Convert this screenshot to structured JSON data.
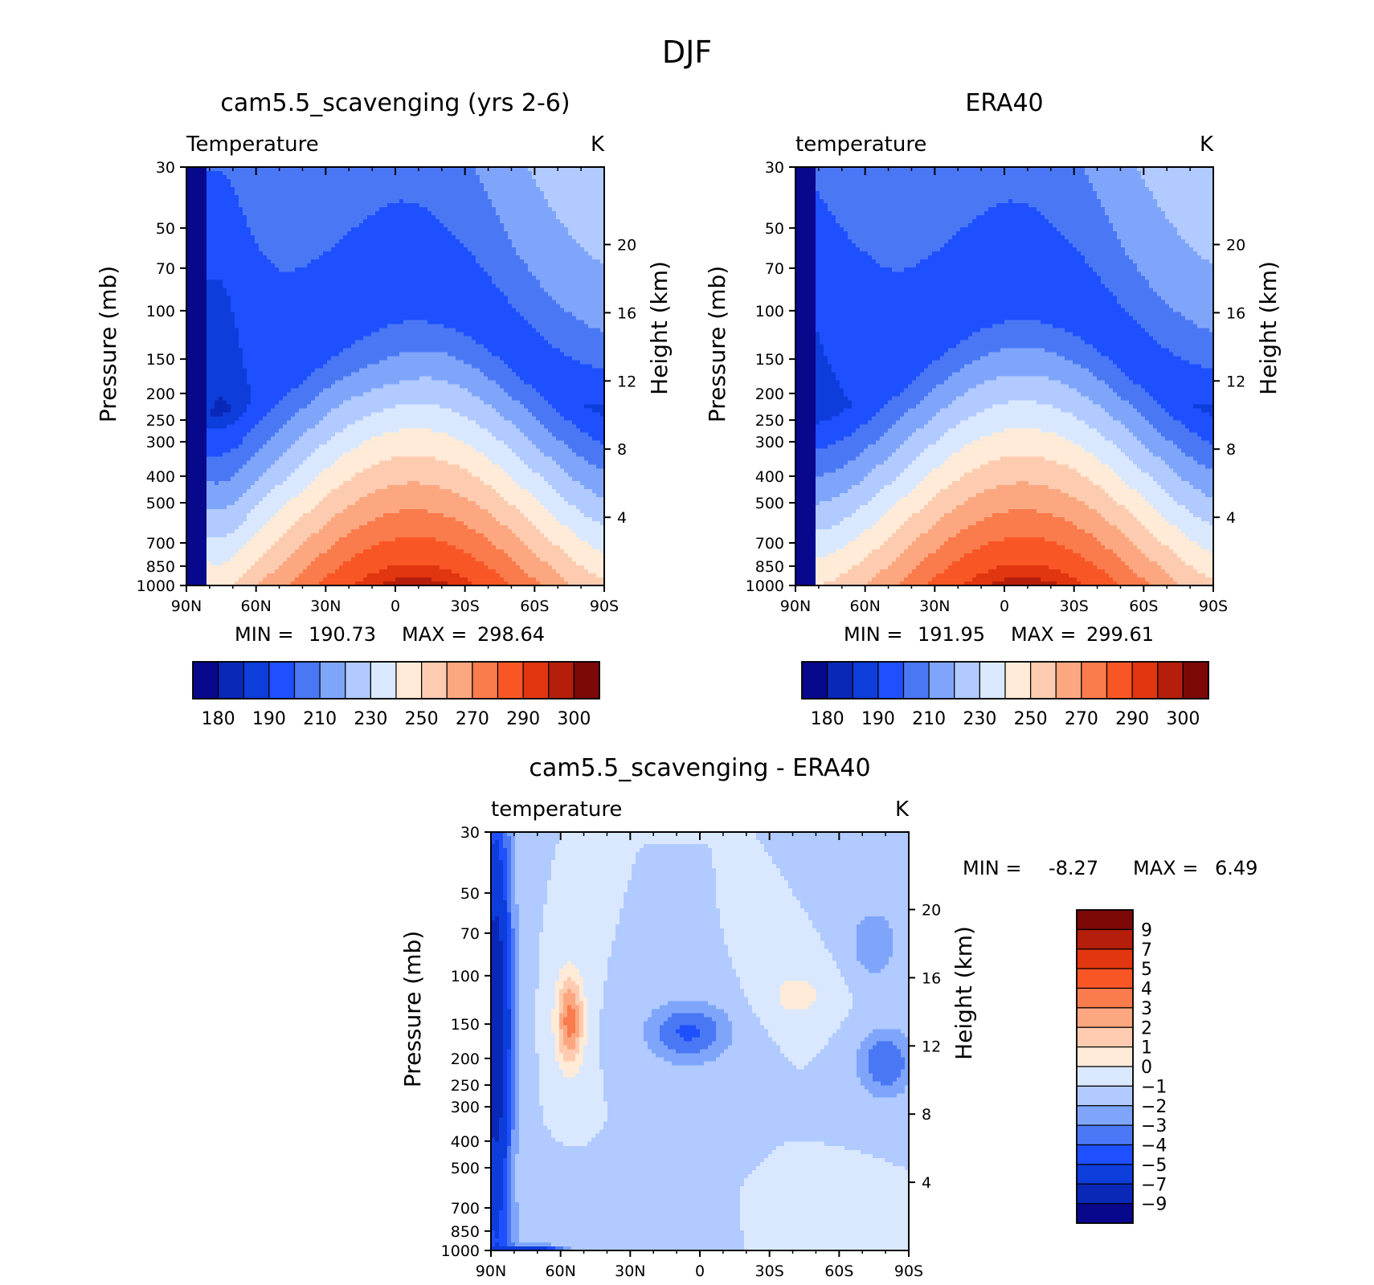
{
  "figure": {
    "title": "DJF"
  },
  "palettes": {
    "temperature": [
      "#08088c",
      "#0a28b8",
      "#0d3ddb",
      "#1e50ff",
      "#4a78f5",
      "#7fa5fb",
      "#b1caff",
      "#dae8ff",
      "#ffebd7",
      "#fdcbb0",
      "#fca77f",
      "#fa7b4c",
      "#f95626",
      "#e1360f",
      "#b41e0a",
      "#7d0808"
    ],
    "difference": [
      "#08088c",
      "#0a28b8",
      "#0d3ddb",
      "#1e50ff",
      "#4a78f5",
      "#7fa5fb",
      "#b1caff",
      "#dae8ff",
      "#ffebd7",
      "#fdcbb0",
      "#fca77f",
      "#fa7b4c",
      "#f95626",
      "#e1360f",
      "#b41e0a",
      "#7d0808"
    ]
  },
  "chart_data": [
    {
      "type": "heatmap",
      "panel": "model",
      "title": "cam5.5_scavenging (yrs 2-6)",
      "left_label": "Temperature",
      "units": "K",
      "ylabel": "Pressure (mb)",
      "y2label": "Height (km)",
      "xticks": [
        "90N",
        "60N",
        "30N",
        "0",
        "30S",
        "60S",
        "90S"
      ],
      "yticks": [
        30,
        50,
        70,
        100,
        150,
        200,
        250,
        300,
        400,
        500,
        700,
        850,
        1000
      ],
      "y2ticks": [
        4,
        8,
        12,
        16,
        20
      ],
      "ylim": [
        30,
        1000
      ],
      "yscale": "log",
      "min_label": "MIN =",
      "max_label": "MAX =",
      "min_value": "190.73",
      "max_value": "298.64",
      "legend_labels": [
        "180",
        "190",
        "210",
        "230",
        "250",
        "270",
        "290",
        "300"
      ],
      "levels": [
        180,
        185,
        190,
        200,
        210,
        220,
        230,
        240,
        250,
        260,
        270,
        280,
        290,
        295,
        300
      ]
    },
    {
      "type": "heatmap",
      "panel": "obs",
      "title": "ERA40",
      "left_label": "temperature",
      "units": "K",
      "ylabel": "Pressure (mb)",
      "y2label": "Height (km)",
      "xticks": [
        "90N",
        "60N",
        "30N",
        "0",
        "30S",
        "60S",
        "90S"
      ],
      "yticks": [
        30,
        50,
        70,
        100,
        150,
        200,
        250,
        300,
        400,
        500,
        700,
        850,
        1000
      ],
      "y2ticks": [
        4,
        8,
        12,
        16,
        20
      ],
      "ylim": [
        30,
        1000
      ],
      "yscale": "log",
      "min_label": "MIN =",
      "max_label": "MAX =",
      "min_value": "191.95",
      "max_value": "299.61",
      "legend_labels": [
        "180",
        "190",
        "210",
        "230",
        "250",
        "270",
        "290",
        "300"
      ],
      "levels": [
        180,
        185,
        190,
        200,
        210,
        220,
        230,
        240,
        250,
        260,
        270,
        280,
        290,
        295,
        300
      ]
    },
    {
      "type": "heatmap",
      "panel": "diff",
      "title": "cam5.5_scavenging - ERA40",
      "left_label": "temperature",
      "units": "K",
      "ylabel": "Pressure (mb)",
      "y2label": "Height (km)",
      "xticks": [
        "90N",
        "60N",
        "30N",
        "0",
        "30S",
        "60S",
        "90S"
      ],
      "yticks": [
        30,
        50,
        70,
        100,
        150,
        200,
        250,
        300,
        400,
        500,
        700,
        850,
        1000
      ],
      "y2ticks": [
        4,
        8,
        12,
        16,
        20
      ],
      "ylim": [
        30,
        1000
      ],
      "yscale": "log",
      "min_label": "MIN =",
      "max_label": "MAX =",
      "min_value": "-8.27",
      "max_value": "6.49",
      "legend_labels": [
        "9",
        "7",
        "5",
        "4",
        "3",
        "2",
        "1",
        "0",
        "−1",
        "−2",
        "−3",
        "−4",
        "−5",
        "−7",
        "−9"
      ],
      "levels": [
        -9,
        -7,
        -5,
        -4,
        -3,
        -2,
        -1,
        0,
        1,
        2,
        3,
        4,
        5,
        7,
        9
      ]
    }
  ]
}
